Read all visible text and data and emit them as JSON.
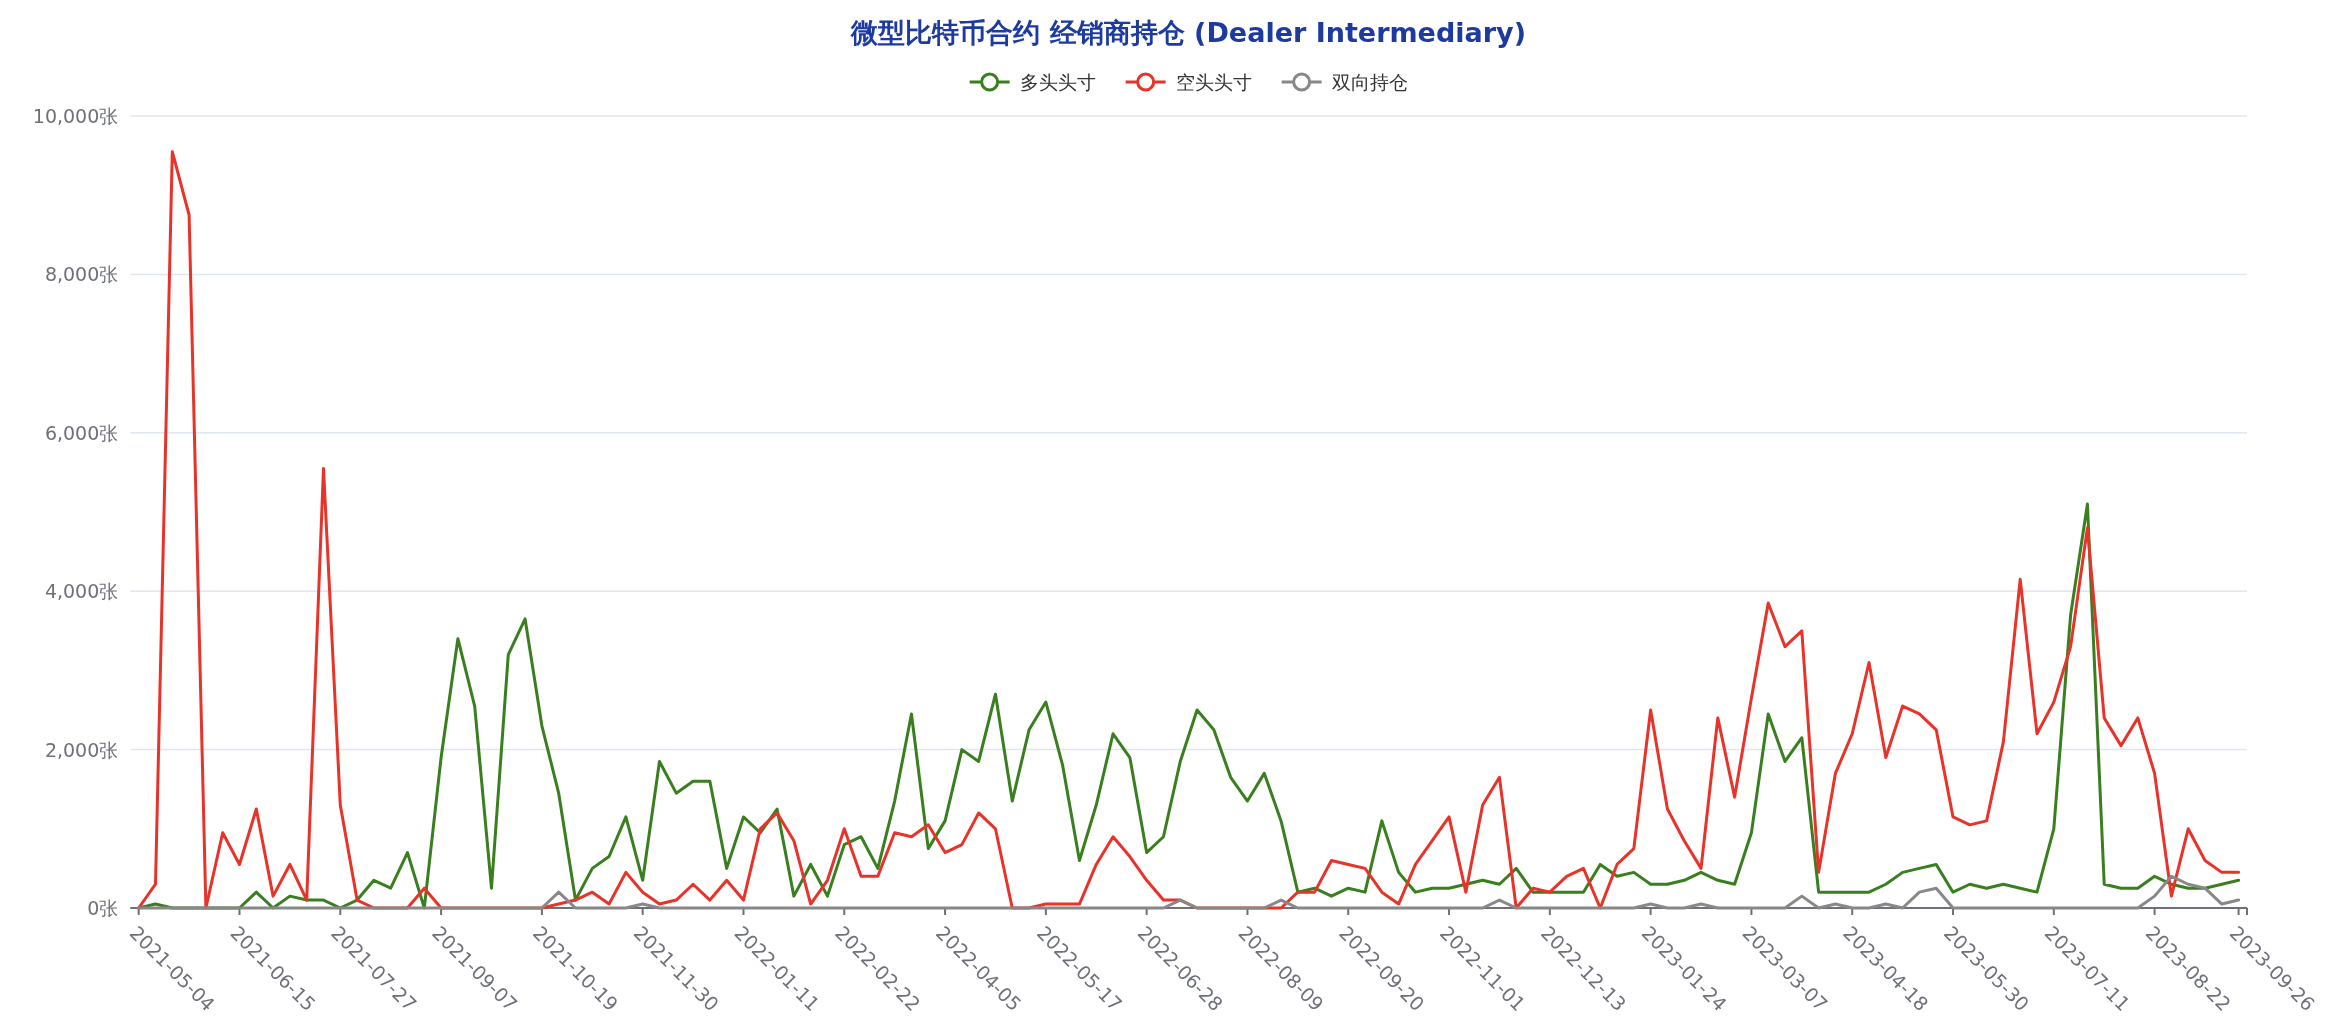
{
  "chart_data": {
    "type": "line",
    "title": "微型比特币合约 经销商持仓 (Dealer Intermediary)",
    "categories": [
      "2021-05-04",
      null,
      null,
      null,
      null,
      null,
      "2021-06-15",
      null,
      null,
      null,
      null,
      null,
      "2021-07-27",
      null,
      null,
      null,
      null,
      null,
      "2021-09-07",
      null,
      null,
      null,
      null,
      null,
      "2021-10-19",
      null,
      null,
      null,
      null,
      null,
      "2021-11-30",
      null,
      null,
      null,
      null,
      null,
      "2022-01-11",
      null,
      null,
      null,
      null,
      null,
      "2022-02-22",
      null,
      null,
      null,
      null,
      null,
      "2022-04-05",
      null,
      null,
      null,
      null,
      null,
      "2022-05-17",
      null,
      null,
      null,
      null,
      null,
      "2022-06-28",
      null,
      null,
      null,
      null,
      null,
      "2022-08-09",
      null,
      null,
      null,
      null,
      null,
      "2022-09-20",
      null,
      null,
      null,
      null,
      null,
      "2022-11-01",
      null,
      null,
      null,
      null,
      null,
      "2022-12-13",
      null,
      null,
      null,
      null,
      null,
      "2023-01-24",
      null,
      null,
      null,
      null,
      null,
      "2023-03-07",
      null,
      null,
      null,
      null,
      null,
      "2023-04-18",
      null,
      null,
      null,
      null,
      null,
      "2023-05-30",
      null,
      null,
      null,
      null,
      null,
      "2023-07-11",
      null,
      null,
      null,
      null,
      null,
      "2023-08-22",
      null,
      null,
      null,
      null,
      "2023-09-26"
    ],
    "series": [
      {
        "name": "多头头寸",
        "color": "#3a7f1f",
        "values": [
          0,
          50,
          0,
          0,
          0,
          0,
          0,
          200,
          0,
          150,
          100,
          100,
          0,
          100,
          350,
          250,
          700,
          0,
          1900,
          3400,
          2550,
          250,
          3200,
          3650,
          2300,
          1450,
          100,
          500,
          650,
          1150,
          350,
          1850,
          1450,
          1600,
          1600,
          500,
          1150,
          950,
          1250,
          150,
          550,
          150,
          800,
          900,
          500,
          1350,
          2450,
          750,
          1100,
          2000,
          1850,
          2700,
          1350,
          2250,
          2600,
          1800,
          600,
          1300,
          2200,
          1900,
          700,
          900,
          1850,
          2500,
          2250,
          1650,
          1350,
          1700,
          1100,
          200,
          250,
          150,
          250,
          200,
          1100,
          450,
          200,
          250,
          250,
          300,
          350,
          300,
          500,
          200,
          200,
          200,
          200,
          550,
          400,
          450,
          300,
          300,
          350,
          450,
          350,
          300,
          950,
          2450,
          1850,
          2150,
          200,
          200,
          200,
          200,
          300,
          450,
          500,
          550,
          200,
          300,
          250,
          300,
          250,
          200,
          1000,
          3700,
          5100,
          300,
          250,
          250,
          400,
          300,
          250,
          250,
          300,
          350
        ]
      },
      {
        "name": "空头头寸",
        "color": "#e8332a",
        "values": [
          0,
          300,
          9550,
          8750,
          0,
          950,
          550,
          1250,
          150,
          550,
          100,
          5550,
          1300,
          100,
          0,
          0,
          0,
          250,
          0,
          0,
          0,
          0,
          0,
          0,
          0,
          50,
          100,
          200,
          50,
          450,
          200,
          50,
          100,
          300,
          100,
          350,
          100,
          1000,
          1200,
          850,
          50,
          350,
          1000,
          400,
          400,
          950,
          900,
          1050,
          700,
          800,
          1200,
          1000,
          0,
          0,
          50,
          50,
          50,
          550,
          900,
          650,
          350,
          100,
          100,
          0,
          0,
          0,
          0,
          0,
          0,
          200,
          200,
          600,
          550,
          500,
          200,
          50,
          550,
          850,
          1150,
          200,
          1300,
          1650,
          0,
          250,
          200,
          400,
          500,
          0,
          550,
          750,
          2500,
          1250,
          850,
          500,
          2400,
          1400,
          2650,
          3850,
          3300,
          3500,
          450,
          1700,
          2200,
          3100,
          1900,
          2550,
          2450,
          2250,
          1150,
          1050,
          1100,
          2100,
          4150,
          2200,
          2600,
          3300,
          4800,
          2400,
          2050,
          2400,
          1700,
          150,
          1000,
          600,
          450,
          450
        ]
      },
      {
        "name": "双向持仓",
        "color": "#888888",
        "values": [
          0,
          0,
          0,
          0,
          0,
          0,
          0,
          0,
          0,
          0,
          0,
          0,
          0,
          0,
          0,
          0,
          0,
          0,
          0,
          0,
          0,
          0,
          0,
          0,
          0,
          200,
          0,
          0,
          0,
          0,
          50,
          0,
          0,
          0,
          0,
          0,
          0,
          0,
          0,
          0,
          0,
          0,
          0,
          0,
          0,
          0,
          0,
          0,
          0,
          0,
          0,
          0,
          0,
          0,
          0,
          0,
          0,
          0,
          0,
          0,
          0,
          0,
          100,
          0,
          0,
          0,
          0,
          0,
          100,
          0,
          0,
          0,
          0,
          0,
          0,
          0,
          0,
          0,
          0,
          0,
          0,
          100,
          0,
          0,
          0,
          0,
          0,
          0,
          0,
          0,
          50,
          0,
          0,
          50,
          0,
          0,
          0,
          0,
          0,
          150,
          0,
          50,
          0,
          0,
          50,
          0,
          200,
          250,
          0,
          0,
          0,
          0,
          0,
          0,
          0,
          0,
          0,
          0,
          0,
          0,
          150,
          400,
          300,
          250,
          50,
          100
        ]
      }
    ],
    "ylim": [
      0,
      10000
    ],
    "yticks": [
      {
        "value": 0,
        "label": "0张"
      },
      {
        "value": 2000,
        "label": "2,000张"
      },
      {
        "value": 4000,
        "label": "4,000张"
      },
      {
        "value": 6000,
        "label": "6,000张"
      },
      {
        "value": 8000,
        "label": "8,000张"
      },
      {
        "value": 10000,
        "label": "10,000张"
      }
    ],
    "grid": "y",
    "legend": "top"
  }
}
